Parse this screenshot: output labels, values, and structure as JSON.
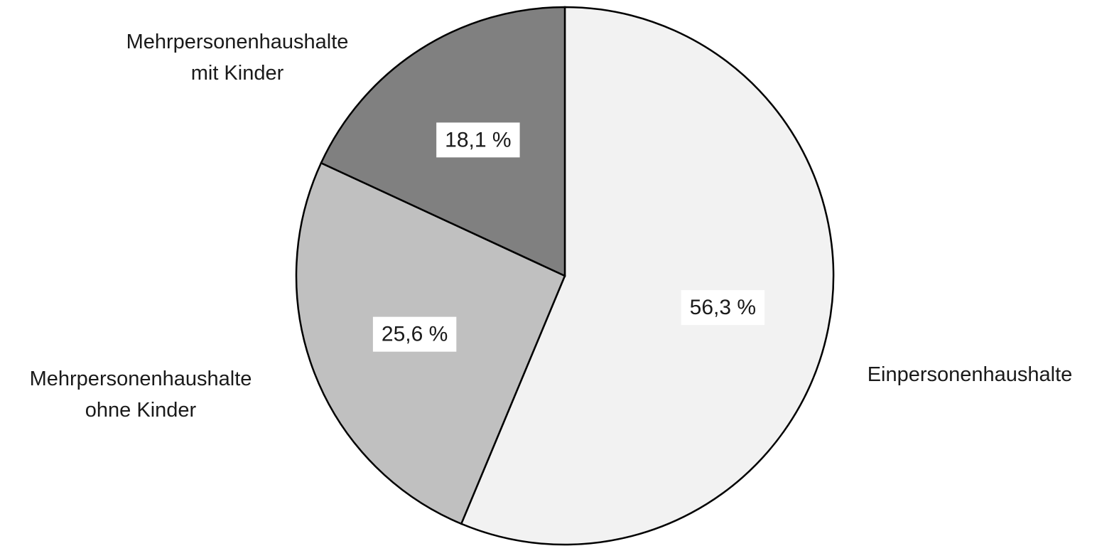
{
  "chart_data": {
    "type": "pie",
    "title": "",
    "slices": [
      {
        "id": "einpersonenhaushalte",
        "label_lines": [
          "Einpersonenhaushalte"
        ],
        "value": 56.3,
        "value_label": "56,3 %",
        "color": "#f2f2f2"
      },
      {
        "id": "mehrpersonenhaushalte-ohne-kinder",
        "label_lines": [
          "Mehrpersonenhaushalte",
          "ohne Kinder"
        ],
        "value": 25.6,
        "value_label": "25,6 %",
        "color": "#c0c0c0"
      },
      {
        "id": "mehrpersonenhaushalte-mit-kinder",
        "label_lines": [
          "Mehrpersonenhaushalte",
          "mit Kinder"
        ],
        "value": 18.1,
        "value_label": "18,1 %",
        "color": "#808080"
      }
    ],
    "start_angle": "12 o'clock",
    "direction": "clockwise",
    "legend": "none",
    "outline_color": "#000000"
  }
}
